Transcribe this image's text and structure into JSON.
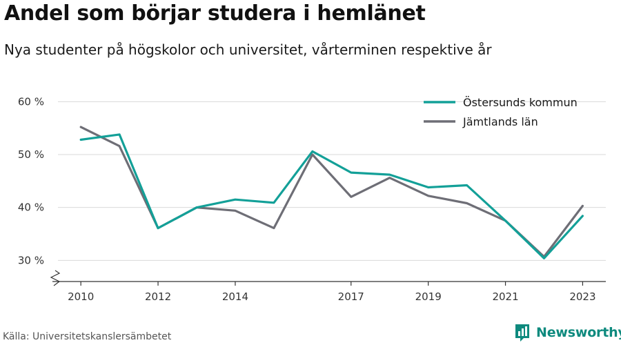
{
  "header": {
    "title": "Andel som börjar studera i hemlänet",
    "subtitle": "Nya studenter på högskolor och universitet, vårterminen respektive år"
  },
  "footer": {
    "source": "Källa: Universitetskanslersämbetet",
    "brand": "Newsworthy"
  },
  "colors": {
    "accent": "#13a098",
    "secondary": "#6e6e76",
    "grid": "#d9d9d9",
    "axis": "#333333",
    "brand": "#0e8a7e"
  },
  "chart_data": {
    "type": "line",
    "x": [
      2010,
      2011,
      2012,
      2013,
      2014,
      2015,
      2016,
      2017,
      2018,
      2019,
      2020,
      2021,
      2022,
      2023
    ],
    "x_tick_labels": [
      "2010",
      "2012",
      "2014",
      "2017",
      "2019",
      "2021",
      "2023"
    ],
    "y_tick_labels": [
      "60 %",
      "50 %",
      "40 %",
      "30 %"
    ],
    "y_ticks": [
      60,
      50,
      40,
      30
    ],
    "ylim": [
      26,
      62
    ],
    "xlim": [
      2009.3,
      2023.6
    ],
    "y_axis_break": true,
    "grid": true,
    "legend_position": "top-right",
    "series": [
      {
        "name": "Östersunds kommun",
        "color": "#13a098",
        "values": [
          52.8,
          53.8,
          36.1,
          40.0,
          41.5,
          40.9,
          50.6,
          46.6,
          46.2,
          43.8,
          44.2,
          37.5,
          30.4,
          38.4
        ]
      },
      {
        "name": "Jämtlands län",
        "color": "#6e6e76",
        "values": [
          55.2,
          51.6,
          36.1,
          40.0,
          39.4,
          36.1,
          50.0,
          42.0,
          45.6,
          42.2,
          40.8,
          37.5,
          30.7,
          40.3
        ]
      }
    ]
  }
}
